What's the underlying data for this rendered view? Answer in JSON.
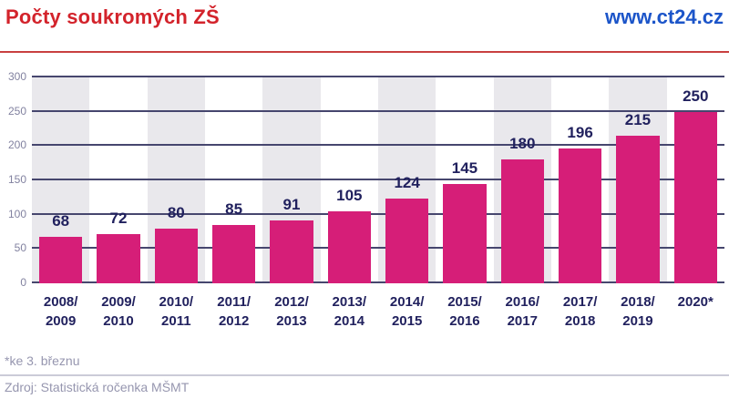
{
  "header": {
    "title": "Počty soukromých ZŠ",
    "site": "www.ct24.cz"
  },
  "chart_data": {
    "type": "bar",
    "title": "Počty soukromých ZŠ",
    "categories": [
      [
        "2008/",
        "2009"
      ],
      [
        "2009/",
        "2010"
      ],
      [
        "2010/",
        "2011"
      ],
      [
        "2011/",
        "2012"
      ],
      [
        "2012/",
        "2013"
      ],
      [
        "2013/",
        "2014"
      ],
      [
        "2014/",
        "2015"
      ],
      [
        "2015/",
        "2016"
      ],
      [
        "2016/",
        "2017"
      ],
      [
        "2017/",
        "2018"
      ],
      [
        "2018/",
        "2019"
      ],
      [
        "2020*"
      ]
    ],
    "values": [
      68,
      72,
      80,
      85,
      91,
      105,
      124,
      145,
      180,
      196,
      215,
      250
    ],
    "xlabel": "",
    "ylabel": "",
    "ylim": [
      0,
      300
    ],
    "yticks": [
      0,
      50,
      100,
      150,
      200,
      250,
      300
    ],
    "grid": "on",
    "legend": "none",
    "value_labels": "on",
    "stripe_pattern": "alternating columns shaded starting with first"
  },
  "footer": {
    "note": "*ke 3. březnu",
    "source": "Zdroj: Statistická ročenka MŠMT"
  },
  "colors": {
    "title_red": "#d3232b",
    "site_blue": "#1c55c9",
    "bar_pink": "#d61e78",
    "label_navy": "#21215e",
    "gridline": "#46466e",
    "axis_label_gray": "#8282a0",
    "stripe_gray": "#e9e8ec",
    "footer_text": "#9696af",
    "divider_light": "#cbcbd8",
    "header_divider_red": "#c94040",
    "background": "#ffffff"
  }
}
